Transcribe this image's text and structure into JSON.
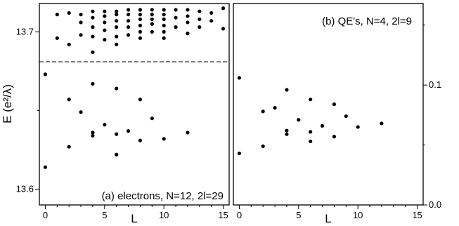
{
  "chart_data": [
    {
      "panel": "a",
      "type": "scatter",
      "label": "(a) electrons, N=12, 2l=29",
      "xlabel": "L",
      "ylabel": "E (e²/λ)",
      "xlim": [
        -0.5,
        15.5
      ],
      "ylim": [
        13.59,
        13.718
      ],
      "x_ticks": [
        0,
        5,
        10,
        15
      ],
      "y_ticks": [
        13.6,
        13.7
      ],
      "dashed_line_y": 13.681,
      "points": [
        [
          0,
          13.673
        ],
        [
          0,
          13.614
        ],
        [
          1,
          13.711
        ],
        [
          1,
          13.696
        ],
        [
          2,
          13.712
        ],
        [
          2,
          13.692
        ],
        [
          2,
          13.657
        ],
        [
          2,
          13.627
        ],
        [
          3,
          13.711
        ],
        [
          3,
          13.706
        ],
        [
          3,
          13.698
        ],
        [
          3,
          13.649
        ],
        [
          4,
          13.713
        ],
        [
          4,
          13.709
        ],
        [
          4,
          13.703
        ],
        [
          4,
          13.697
        ],
        [
          4,
          13.687
        ],
        [
          4,
          13.667
        ],
        [
          4,
          13.636
        ],
        [
          4,
          13.634
        ],
        [
          5,
          13.713
        ],
        [
          5,
          13.71
        ],
        [
          5,
          13.706
        ],
        [
          5,
          13.701
        ],
        [
          5,
          13.695
        ],
        [
          5,
          13.641
        ],
        [
          6,
          13.713
        ],
        [
          6,
          13.711
        ],
        [
          6,
          13.707
        ],
        [
          6,
          13.703
        ],
        [
          6,
          13.697
        ],
        [
          6,
          13.692
        ],
        [
          6,
          13.664
        ],
        [
          6,
          13.635
        ],
        [
          6,
          13.622
        ],
        [
          7,
          13.714
        ],
        [
          7,
          13.711
        ],
        [
          7,
          13.707
        ],
        [
          7,
          13.703
        ],
        [
          7,
          13.698
        ],
        [
          7,
          13.637
        ],
        [
          8,
          13.714
        ],
        [
          8,
          13.711
        ],
        [
          8,
          13.708
        ],
        [
          8,
          13.704
        ],
        [
          8,
          13.7
        ],
        [
          8,
          13.696
        ],
        [
          8,
          13.657
        ],
        [
          8,
          13.631
        ],
        [
          9,
          13.714
        ],
        [
          9,
          13.711
        ],
        [
          9,
          13.708
        ],
        [
          9,
          13.705
        ],
        [
          9,
          13.7
        ],
        [
          9,
          13.645
        ],
        [
          10,
          13.714
        ],
        [
          10,
          13.711
        ],
        [
          10,
          13.708
        ],
        [
          10,
          13.704
        ],
        [
          10,
          13.7
        ],
        [
          10,
          13.696
        ],
        [
          10,
          13.632
        ],
        [
          11,
          13.714
        ],
        [
          11,
          13.709
        ],
        [
          11,
          13.703
        ],
        [
          12,
          13.714
        ],
        [
          12,
          13.71
        ],
        [
          12,
          13.706
        ],
        [
          12,
          13.699
        ],
        [
          12,
          13.636
        ],
        [
          13,
          13.713
        ],
        [
          13,
          13.708
        ],
        [
          13,
          13.703
        ],
        [
          14,
          13.712
        ],
        [
          14,
          13.707
        ],
        [
          15,
          13.715
        ],
        [
          15,
          13.702
        ]
      ]
    },
    {
      "panel": "b",
      "type": "scatter",
      "label": "(b) QE's, N=4, 2l=9",
      "xlabel": "L",
      "xlim": [
        -0.5,
        15.5
      ],
      "ylim": [
        0,
        0.168
      ],
      "x_ticks": [
        0,
        5,
        10,
        15
      ],
      "y_ticks": [
        0.0,
        0.1
      ],
      "y_tick_labels": [
        "0.0",
        "0.1"
      ],
      "y_minor_ticks": [
        0.05,
        0.15
      ],
      "points": [
        [
          0,
          0.106
        ],
        [
          0,
          0.043
        ],
        [
          2,
          0.078
        ],
        [
          2,
          0.049
        ],
        [
          3,
          0.081
        ],
        [
          4,
          0.096
        ],
        [
          4,
          0.062
        ],
        [
          4,
          0.059
        ],
        [
          5,
          0.071
        ],
        [
          6,
          0.088
        ],
        [
          6,
          0.061
        ],
        [
          6,
          0.053
        ],
        [
          7,
          0.066
        ],
        [
          8,
          0.084
        ],
        [
          8,
          0.057
        ],
        [
          9,
          0.074
        ],
        [
          10,
          0.065
        ],
        [
          12,
          0.068
        ]
      ]
    }
  ]
}
